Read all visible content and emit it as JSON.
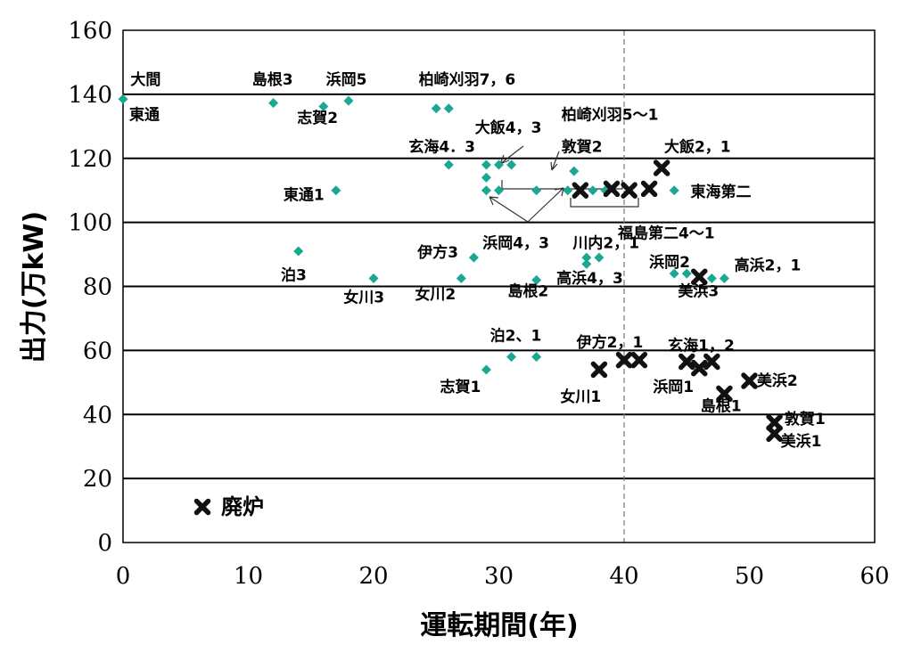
{
  "chart_data": {
    "type": "scatter",
    "xlabel": "運転期間(年)",
    "ylabel": "出力(万kW)",
    "xlim": [
      0,
      60
    ],
    "ylim": [
      0,
      160
    ],
    "xticks": [
      0,
      10,
      20,
      30,
      40,
      50,
      60
    ],
    "yticks": [
      0,
      20,
      40,
      60,
      80,
      100,
      120,
      140,
      160
    ],
    "grid": "horizontal",
    "reference_line_x": 40,
    "colors": {
      "operating": "#1aa893",
      "decommissioned": "#111111"
    },
    "legend": {
      "decommissioned_label": "廃炉",
      "placement": "bottom-left"
    },
    "series": [
      {
        "name": "",
        "marker": "diamond",
        "color": "#1aa893",
        "points": [
          [
            0,
            138.5
          ],
          [
            12,
            137.3
          ],
          [
            16,
            136.2
          ],
          [
            18,
            138
          ],
          [
            25,
            135.6
          ],
          [
            26,
            135.6
          ],
          [
            17,
            110
          ],
          [
            14,
            91
          ],
          [
            20,
            82.5
          ],
          [
            26,
            118
          ],
          [
            27,
            82.5
          ],
          [
            28,
            89
          ],
          [
            29,
            118
          ],
          [
            29,
            114
          ],
          [
            29,
            110
          ],
          [
            29,
            54
          ],
          [
            30,
            118
          ],
          [
            30,
            110
          ],
          [
            31,
            118
          ],
          [
            31,
            58
          ],
          [
            33,
            110
          ],
          [
            33,
            82
          ],
          [
            33,
            58
          ],
          [
            35.5,
            110
          ],
          [
            36,
            116
          ],
          [
            37,
            89
          ],
          [
            37,
            87
          ],
          [
            38,
            89
          ],
          [
            37.5,
            110
          ],
          [
            38.5,
            110
          ],
          [
            44,
            110
          ],
          [
            44,
            84
          ],
          [
            45,
            84
          ],
          [
            47,
            82.5
          ],
          [
            48,
            82.5
          ]
        ]
      },
      {
        "name": "廃炉",
        "marker": "x",
        "color": "#111111",
        "points": [
          [
            36.5,
            110
          ],
          [
            39,
            110.5
          ],
          [
            40.4,
            110
          ],
          [
            42,
            110.5
          ],
          [
            43,
            117
          ],
          [
            46,
            83
          ],
          [
            38,
            54
          ],
          [
            40,
            57
          ],
          [
            41.2,
            57
          ],
          [
            45,
            56.5
          ],
          [
            46,
            54.5
          ],
          [
            47,
            56.5
          ],
          [
            48,
            46.5
          ],
          [
            50,
            50.5
          ],
          [
            52,
            37.5
          ],
          [
            52,
            34
          ]
        ]
      }
    ],
    "annotations": [
      {
        "text": "大間",
        "at": [
          0.6,
          143
        ]
      },
      {
        "text": "東通",
        "at": [
          0.5,
          132
        ]
      },
      {
        "text": "島根3",
        "at": [
          10.3,
          143
        ]
      },
      {
        "text": "浜岡5",
        "at": [
          16.2,
          143
        ]
      },
      {
        "text": "志賀2",
        "at": [
          13.9,
          131
        ]
      },
      {
        "text": "柏崎刈羽7，6",
        "at": [
          23.6,
          143
        ]
      },
      {
        "text": "大飯4，3",
        "at": [
          28.1,
          128
        ]
      },
      {
        "text": "柏崎刈羽5～1",
        "at": [
          35,
          132
        ]
      },
      {
        "text": "玄海4．3",
        "at": [
          22.8,
          122
        ]
      },
      {
        "text": "敦賀2",
        "at": [
          35,
          122
        ]
      },
      {
        "text": "大飯2，1",
        "at": [
          43.2,
          122
        ]
      },
      {
        "text": "東通1",
        "at": [
          12.8,
          107
        ]
      },
      {
        "text": "東海第二",
        "at": [
          45.3,
          108
        ]
      },
      {
        "text": "福島第二4～1",
        "at": [
          39.5,
          95
        ]
      },
      {
        "text": "浜岡4，3",
        "at": [
          28.7,
          92
        ]
      },
      {
        "text": "川内2，1",
        "at": [
          35.9,
          92
        ]
      },
      {
        "text": "伊方3",
        "at": [
          23.5,
          89
        ]
      },
      {
        "text": "泊3",
        "at": [
          12.6,
          82
        ]
      },
      {
        "text": "浜岡2",
        "at": [
          42,
          86
        ]
      },
      {
        "text": "高浜2，1",
        "at": [
          48.8,
          85
        ]
      },
      {
        "text": "高浜4，3",
        "at": [
          34.6,
          81
        ]
      },
      {
        "text": "女川3",
        "at": [
          17.6,
          75
        ]
      },
      {
        "text": "女川2",
        "at": [
          23.3,
          76
        ]
      },
      {
        "text": "島根2",
        "at": [
          30.7,
          77
        ]
      },
      {
        "text": "美浜3",
        "at": [
          44.3,
          77
        ]
      },
      {
        "text": "泊2、1",
        "at": [
          29.3,
          63
        ]
      },
      {
        "text": "伊方2，1",
        "at": [
          36.2,
          61
        ]
      },
      {
        "text": "玄海1，2",
        "at": [
          43.5,
          60
        ]
      },
      {
        "text": "志賀1",
        "at": [
          25.3,
          47
        ]
      },
      {
        "text": "女川1",
        "at": [
          34.9,
          44
        ]
      },
      {
        "text": "浜岡1",
        "at": [
          42.3,
          47
        ]
      },
      {
        "text": "美浜2",
        "at": [
          50.6,
          49
        ]
      },
      {
        "text": "島根1",
        "at": [
          46.1,
          41
        ]
      },
      {
        "text": "敦賀1",
        "at": [
          52.8,
          37
        ]
      },
      {
        "text": "美浜1",
        "at": [
          52.5,
          30
        ]
      }
    ]
  }
}
